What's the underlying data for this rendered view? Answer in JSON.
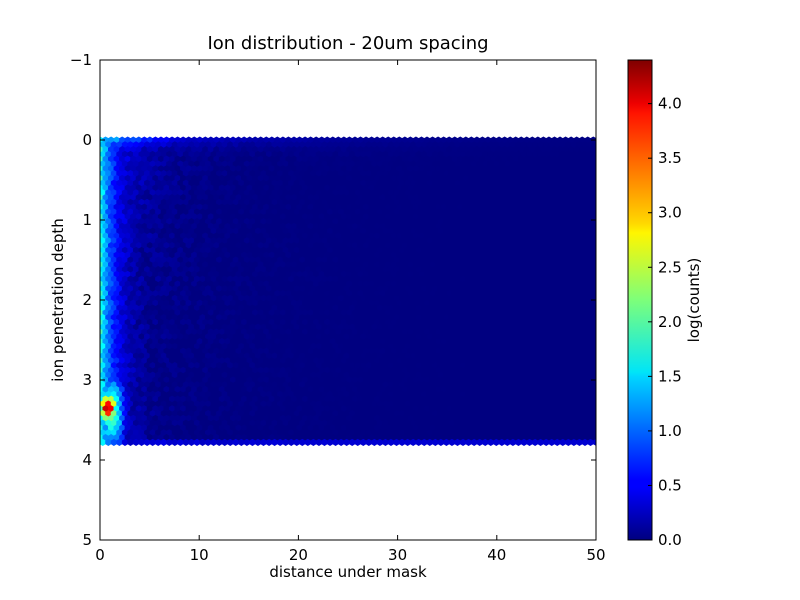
{
  "chart_data": {
    "type": "heatmap",
    "subtype": "hexbin",
    "title": "Ion distribution - 20um spacing",
    "xlabel": "distance under mask",
    "ylabel": "ion penetration depth",
    "xlim": [
      0,
      50
    ],
    "ylim": [
      5,
      -1
    ],
    "y_inverted": true,
    "xticks": [
      "0",
      "10",
      "20",
      "30",
      "40",
      "50"
    ],
    "yticks": [
      "−1",
      "0",
      "1",
      "2",
      "3",
      "4",
      "5"
    ],
    "data_extent": {
      "x": [
        0,
        50
      ],
      "y": [
        0,
        3.83
      ]
    },
    "colormap": "jet",
    "colorbar": {
      "label": "log(counts)",
      "range": [
        0,
        4.4
      ],
      "ticks": [
        "0.0",
        "0.5",
        "1.0",
        "1.5",
        "2.0",
        "2.5",
        "3.0",
        "3.5",
        "4.0"
      ]
    },
    "profile_description": "log(counts) as a function of distance and depth",
    "surface_band": {
      "depth": 0.0,
      "peak_log_counts": 1.8,
      "decays_to_background_by_x": 30
    },
    "near_edge_column": {
      "x_range": [
        0,
        2
      ],
      "log_counts_range": [
        1.5,
        2.2
      ]
    },
    "hotspot": {
      "x": 0.8,
      "y": 3.35,
      "log_counts": 4.35
    },
    "background_log_counts": 0.0,
    "grid": false,
    "legend": "none"
  }
}
